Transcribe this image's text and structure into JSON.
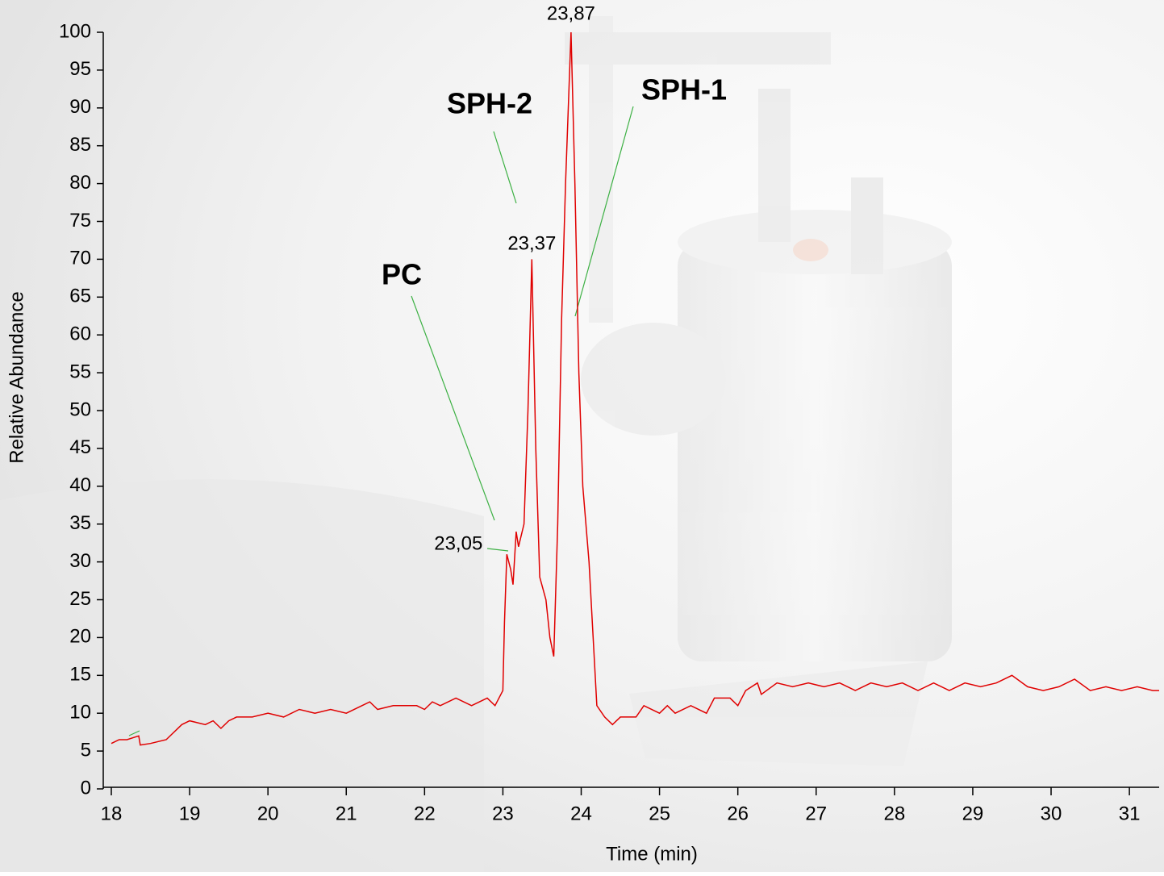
{
  "chart_data": {
    "type": "line",
    "xlabel": "Time (min)",
    "ylabel": "Relative Abundance",
    "color": "#e00000",
    "x": [
      18.0,
      18.1,
      18.2,
      18.35,
      18.37,
      18.5,
      18.7,
      18.9,
      19.0,
      19.2,
      19.3,
      19.4,
      19.5,
      19.6,
      19.8,
      20.0,
      20.2,
      20.4,
      20.6,
      20.8,
      21.0,
      21.2,
      21.3,
      21.4,
      21.6,
      21.9,
      22.0,
      22.1,
      22.2,
      22.4,
      22.6,
      22.8,
      22.9,
      23.0,
      23.02,
      23.05,
      23.1,
      23.13,
      23.17,
      23.2,
      23.27,
      23.32,
      23.37,
      23.42,
      23.47,
      23.55,
      23.6,
      23.65,
      23.7,
      23.75,
      23.8,
      23.87,
      23.92,
      23.97,
      24.02,
      24.1,
      24.2,
      24.3,
      24.4,
      24.5,
      24.7,
      24.8,
      25.0,
      25.1,
      25.2,
      25.4,
      25.6,
      25.7,
      25.9,
      26.0,
      26.1,
      26.25,
      26.3,
      26.5,
      26.7,
      26.9,
      27.1,
      27.3,
      27.5,
      27.7,
      27.9,
      28.1,
      28.3,
      28.5,
      28.7,
      28.9,
      29.1,
      29.3,
      29.5,
      29.7,
      29.9,
      30.1,
      30.3,
      30.5,
      30.7,
      30.9,
      31.1,
      31.3,
      31.38
    ],
    "values": [
      6,
      6.5,
      6.5,
      7,
      5.8,
      6,
      6.5,
      8.5,
      9,
      8.5,
      9,
      8,
      9,
      9.5,
      9.5,
      10,
      9.5,
      10.5,
      10,
      10.5,
      10,
      11,
      11.5,
      10.5,
      11,
      11,
      10.5,
      11.5,
      11,
      12,
      11,
      12,
      11,
      13,
      22,
      31,
      29,
      27,
      34,
      32,
      35,
      50,
      70,
      45,
      28,
      25,
      20,
      17.5,
      35,
      62,
      80,
      100,
      80,
      55,
      40,
      30,
      11,
      9.5,
      8.5,
      9.5,
      9.5,
      11,
      10,
      11,
      10,
      11,
      10,
      12,
      12,
      11,
      13,
      14,
      12.5,
      14,
      13.5,
      14,
      13.5,
      14,
      13,
      14,
      13.5,
      14,
      13,
      14,
      13,
      14,
      13.5,
      14,
      15,
      13.5,
      13,
      13.5,
      14.5,
      13,
      13.5,
      13,
      13.5,
      13,
      13
    ],
    "xlim": [
      18,
      31.38
    ],
    "xticks": [
      18,
      19,
      20,
      21,
      22,
      23,
      24,
      25,
      26,
      27,
      28,
      29,
      30,
      31
    ],
    "ylim": [
      0,
      100
    ],
    "yticks": [
      0,
      5,
      10,
      15,
      20,
      25,
      30,
      35,
      40,
      45,
      50,
      55,
      60,
      65,
      70,
      75,
      80,
      85,
      90,
      95,
      100
    ],
    "peaks": [
      {
        "value": 23.05,
        "label": "23,05"
      },
      {
        "value": 23.37,
        "label": "23,37"
      },
      {
        "value": 23.87,
        "label": "23,87"
      }
    ],
    "annotations": [
      "PC",
      "SPH-2",
      "SPH-1"
    ]
  }
}
